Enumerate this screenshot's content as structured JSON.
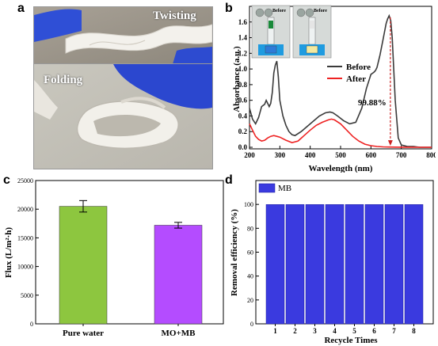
{
  "panels": {
    "a": "a",
    "b": "b",
    "c": "c",
    "d": "d"
  },
  "photo_labels": {
    "twisting": "Twisting",
    "folding": "Folding"
  },
  "colors": {
    "before": "#3a3a3a",
    "after": "#ee2222",
    "green": "#8dc63f",
    "purple": "#b44cff",
    "blue": "#3a3adf",
    "annot": "#cc2222"
  },
  "chart_data": [
    {
      "type": "line",
      "xlabel": "Wavelength (nm)",
      "ylabel": "Absorbance (a.u.)",
      "xlim": [
        200,
        800
      ],
      "ylim": [
        -0.02,
        1.8
      ],
      "xticks": [
        200,
        300,
        400,
        500,
        600,
        700,
        800
      ],
      "yticks": [
        0.0,
        0.2,
        0.4,
        0.6,
        0.8,
        1.0,
        1.2,
        1.4,
        1.6
      ],
      "legend_position": "right",
      "inset_labels": [
        "Before",
        "Before"
      ],
      "annotation": {
        "text": "99.88%",
        "x": 664
      },
      "series": [
        {
          "name": "Before",
          "x": [
            200,
            210,
            220,
            230,
            240,
            250,
            255,
            260,
            265,
            270,
            275,
            280,
            285,
            290,
            295,
            300,
            310,
            320,
            330,
            340,
            350,
            370,
            400,
            430,
            450,
            465,
            475,
            490,
            510,
            530,
            550,
            570,
            585,
            600,
            610,
            615,
            620,
            630,
            640,
            650,
            655,
            660,
            665,
            670,
            680,
            690,
            700,
            720,
            740,
            760,
            800
          ],
          "y": [
            0.5,
            0.36,
            0.3,
            0.38,
            0.52,
            0.55,
            0.6,
            0.56,
            0.52,
            0.56,
            0.7,
            0.95,
            1.05,
            1.1,
            0.9,
            0.6,
            0.4,
            0.28,
            0.2,
            0.16,
            0.15,
            0.2,
            0.3,
            0.4,
            0.44,
            0.45,
            0.44,
            0.4,
            0.34,
            0.3,
            0.32,
            0.5,
            0.75,
            0.93,
            0.96,
            0.98,
            1.02,
            1.18,
            1.38,
            1.58,
            1.64,
            1.68,
            1.62,
            1.4,
            0.6,
            0.12,
            0.03,
            0.01,
            0.01,
            0.0,
            0.0
          ]
        },
        {
          "name": "After",
          "x": [
            200,
            210,
            220,
            230,
            240,
            250,
            260,
            270,
            280,
            290,
            300,
            320,
            340,
            360,
            380,
            400,
            420,
            440,
            460,
            470,
            480,
            500,
            520,
            540,
            560,
            580,
            600,
            620,
            640,
            660,
            680,
            700,
            750,
            800
          ],
          "y": [
            0.3,
            0.22,
            0.14,
            0.1,
            0.08,
            0.09,
            0.12,
            0.14,
            0.15,
            0.14,
            0.13,
            0.09,
            0.06,
            0.08,
            0.15,
            0.22,
            0.28,
            0.32,
            0.35,
            0.36,
            0.35,
            0.3,
            0.22,
            0.14,
            0.08,
            0.04,
            0.02,
            0.01,
            0.005,
            0.003,
            0.002,
            0.001,
            0.0,
            0.0
          ]
        }
      ]
    },
    {
      "type": "bar",
      "categories": [
        "Pure water",
        "MO+MB"
      ],
      "values": [
        20500,
        17200
      ],
      "errors": [
        1000,
        500
      ],
      "ylabel": "Flux (L/m²·h)",
      "ylim": [
        0,
        25000
      ],
      "yticks": [
        0,
        5000,
        10000,
        15000,
        20000,
        25000
      ],
      "colors": [
        "#8dc63f",
        "#b44cff"
      ]
    },
    {
      "type": "bar",
      "categories": [
        "1",
        "2",
        "3",
        "4",
        "5",
        "6",
        "7",
        "8"
      ],
      "series": [
        {
          "name": "MB",
          "values": [
            99.9,
            99.9,
            99.9,
            99.9,
            99.9,
            99.9,
            99.9,
            99.9
          ]
        }
      ],
      "xlabel": "Recycle Times",
      "ylabel": "Removal efficiency (%)",
      "ylim": [
        0,
        120
      ],
      "yticks": [
        0,
        20,
        40,
        60,
        80,
        100
      ],
      "legend_position": "top-left"
    }
  ]
}
